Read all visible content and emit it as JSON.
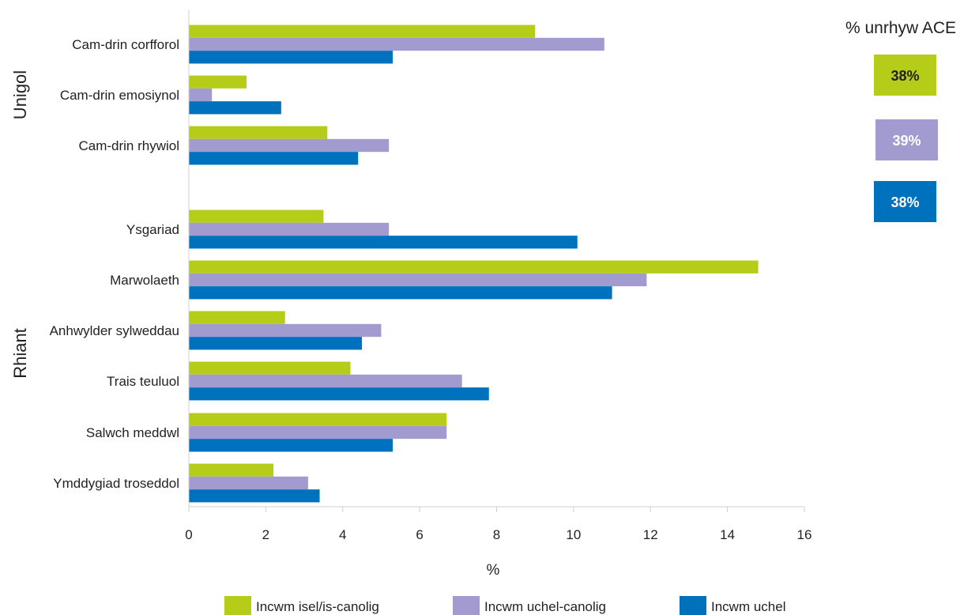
{
  "chart_data": {
    "type": "bar",
    "orientation": "horizontal",
    "xlabel": "%",
    "xlim": [
      0,
      16
    ],
    "xticks": [
      0,
      2,
      4,
      6,
      8,
      10,
      12,
      14,
      16
    ],
    "grid": false,
    "legend_position": "bottom",
    "groups": [
      {
        "label": "Unigol",
        "categories": [
          "Cam-drin corfforol",
          "Cam-drin emosiynol",
          "Cam-drin rhywiol"
        ]
      },
      {
        "label": "Rhiant",
        "categories": [
          "Ysgariad",
          "Marwolaeth",
          "Anhwylder sylweddau",
          "Trais teuluol",
          "Salwch meddwl",
          "Ymddygiad troseddol"
        ]
      }
    ],
    "categories": [
      "Cam-drin corfforol",
      "Cam-drin emosiynol",
      "Cam-drin rhywiol",
      "Ysgariad",
      "Marwolaeth",
      "Anhwylder sylweddau",
      "Trais teuluol",
      "Salwch meddwl",
      "Ymddygiad troseddol"
    ],
    "series": [
      {
        "name": "Incwm isel/is-canolig",
        "color": "#b5cc18",
        "values": [
          9.0,
          1.5,
          3.6,
          3.5,
          14.8,
          2.5,
          4.2,
          6.7,
          2.2
        ]
      },
      {
        "name": "Incwm uchel-canolig",
        "color": "#a29bd0",
        "values": [
          10.8,
          0.6,
          5.2,
          5.2,
          11.9,
          5.0,
          7.1,
          6.7,
          3.1
        ]
      },
      {
        "name": "Incwm uchel",
        "color": "#0071bc",
        "values": [
          5.3,
          2.4,
          4.4,
          10.1,
          11.0,
          4.5,
          7.8,
          5.3,
          3.4
        ]
      }
    ],
    "side_panel": {
      "title": "% unrhyw ACE",
      "values": [
        {
          "label": "38%",
          "color": "#b5cc18",
          "text_color": "#231f20"
        },
        {
          "label": "39%",
          "color": "#a29bd0",
          "text_color": "#ffffff"
        },
        {
          "label": "38%",
          "color": "#0071bc",
          "text_color": "#ffffff"
        }
      ]
    }
  }
}
